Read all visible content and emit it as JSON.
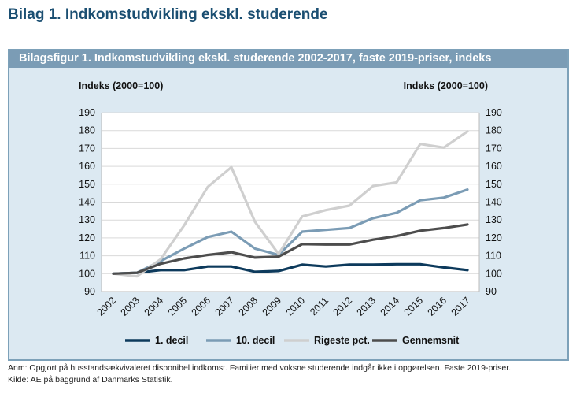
{
  "page": {
    "title": "Bilag 1. Indkomstudvikling ekskl. studerende",
    "figure_title": "Bilagsfigur 1. Indkomstudvikling ekskl. studerende 2002-2017, faste 2019-priser, indeks",
    "note": "Anm: Opgjort på husstandsækvivaleret disponibel indkomst. Familier med voksne studerende indgår ikke i opgørelsen. Faste 2019-priser.",
    "source": "Kilde: AE på baggrund af Danmarks Statistik."
  },
  "chart_data": {
    "type": "line",
    "ylabel_left": "Indeks (2000=100)",
    "ylabel_right": "Indeks (2000=100)",
    "ylim": [
      90,
      190
    ],
    "yticks": [
      90,
      100,
      110,
      120,
      130,
      140,
      150,
      160,
      170,
      180,
      190
    ],
    "grid": true,
    "legend_position": "bottom",
    "x": [
      "2002",
      "2003",
      "2004",
      "2005",
      "2006",
      "2007",
      "2008",
      "2009",
      "2010",
      "2011",
      "2012",
      "2013",
      "2014",
      "2015",
      "2016",
      "2017"
    ],
    "series": [
      {
        "name": "1. decil",
        "color": "#0d3a5c",
        "values": [
          100,
          100.5,
          102,
          102,
          104,
          104,
          101,
          101.5,
          105,
          104,
          105,
          105,
          105.3,
          105.3,
          103.5,
          102
        ]
      },
      {
        "name": "10. decil",
        "color": "#7b9cb5",
        "values": [
          100,
          100.5,
          107,
          114,
          120.5,
          123.5,
          114,
          110.5,
          123.5,
          124.5,
          125.5,
          131,
          134,
          141,
          142.5,
          147
        ]
      },
      {
        "name": "Rigeste pct.",
        "color": "#cfcfcf",
        "values": [
          100,
          98.5,
          108,
          127,
          148.5,
          159.5,
          129,
          111,
          132,
          135.5,
          138,
          149,
          151,
          172.5,
          170.5,
          179.5
        ]
      },
      {
        "name": "Gennemsnit",
        "color": "#4d4d4d",
        "values": [
          100,
          100.5,
          105.5,
          108.5,
          110.5,
          112,
          109,
          109.5,
          116.5,
          116.3,
          116.3,
          119,
          121,
          124,
          125.5,
          127.5
        ]
      }
    ]
  }
}
